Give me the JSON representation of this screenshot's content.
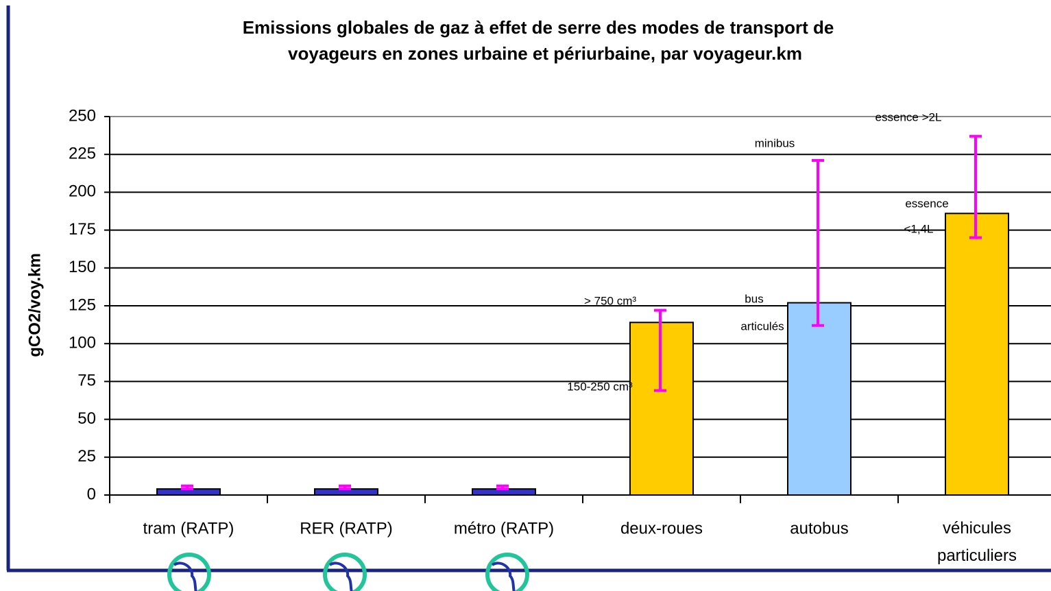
{
  "chart_data": {
    "type": "bar",
    "title": [
      "Emissions globales de gaz à effet de serre des modes de transport de",
      "voyageurs en zones urbaine et périurbaine, par voyageur.km"
    ],
    "y_label": "gCO2/voy.km",
    "categories": [
      "tram (RATP)",
      "RER (RATP)",
      "métro (RATP)",
      "deux-roues",
      "autobus",
      "véhicules particuliers"
    ],
    "values": [
      4,
      4,
      4,
      114,
      127,
      186
    ],
    "colors": [
      "#3333cc",
      "#3333cc",
      "#3333cc",
      "#ffcc00",
      "#99ccff",
      "#ffcc00"
    ],
    "range_low": [
      4,
      4,
      4,
      69,
      112,
      170
    ],
    "range_high": [
      6,
      6,
      6,
      122,
      221,
      237
    ],
    "error_color": "#ff00ff",
    "annotations": [
      "> 750 cm³",
      "150-250 cm³",
      "bus",
      "articulés",
      "minibus",
      "essence >2L",
      "essence",
      "<1,4L"
    ],
    "ylim": [
      0,
      250
    ],
    "yticks": [
      0,
      25,
      50,
      75,
      100,
      125,
      150,
      175,
      200,
      225,
      250
    ],
    "grid": true
  }
}
